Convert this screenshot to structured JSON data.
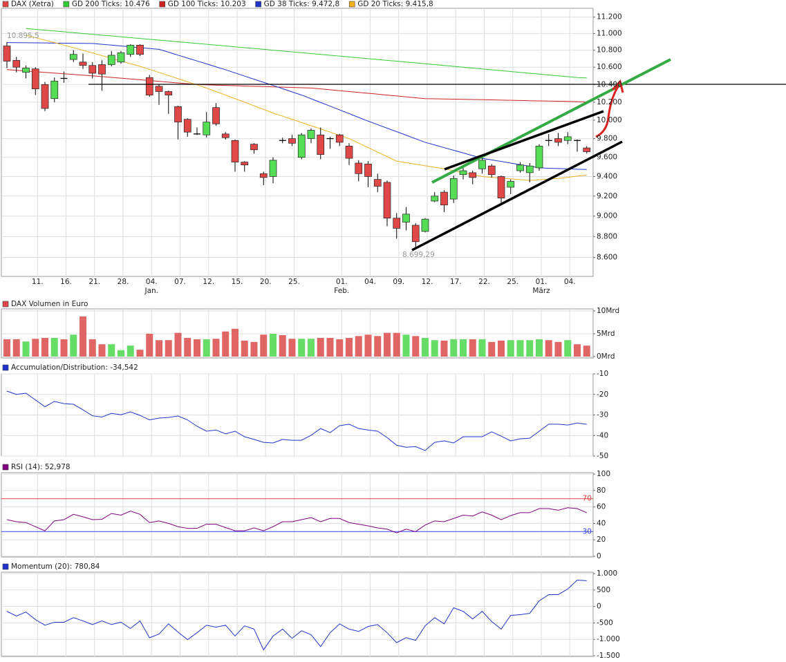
{
  "chart_data": [
    {
      "type": "candlestick",
      "name": "DAX (Xetra)",
      "log": true,
      "grid": true,
      "up_color": "#55dd55",
      "down_color": "#e04848",
      "ylim": [
        8500,
        11300
      ],
      "yticks": [
        {
          "value": 11200,
          "label": "11.200"
        },
        {
          "value": 11000,
          "label": "11.000"
        },
        {
          "value": 10800,
          "label": "10.800"
        },
        {
          "value": 10600,
          "label": "10.600"
        },
        {
          "value": 10400,
          "label": "10.400"
        },
        {
          "value": 10200,
          "label": "10.200"
        },
        {
          "value": 10000,
          "label": "10.000"
        },
        {
          "value": 9800,
          "label": "9.800"
        },
        {
          "value": 9600,
          "label": "9.600"
        },
        {
          "value": 9400,
          "label": "9.400"
        },
        {
          "value": 9200,
          "label": "9.200"
        },
        {
          "value": 9000,
          "label": "9.000"
        },
        {
          "value": 8800,
          "label": "8.800"
        },
        {
          "value": 8600,
          "label": "8.600"
        }
      ],
      "categories": [
        null,
        null,
        null,
        "11.",
        null,
        null,
        "16.",
        null,
        null,
        "21.",
        null,
        null,
        "28.",
        null,
        null,
        "04.",
        null,
        null,
        "07.",
        null,
        null,
        "12.",
        null,
        null,
        "15.",
        null,
        null,
        "20.",
        null,
        null,
        "25.",
        null,
        null,
        null,
        null,
        "01.",
        null,
        null,
        "04.",
        null,
        null,
        "09.",
        null,
        null,
        "12.",
        null,
        null,
        "17.",
        null,
        null,
        "22.",
        null,
        null,
        "25.",
        null,
        null,
        "01.",
        null,
        null,
        "04.",
        null,
        null
      ],
      "months": [
        null,
        null,
        null,
        null,
        null,
        null,
        null,
        null,
        null,
        null,
        null,
        null,
        null,
        null,
        null,
        "Jan.",
        null,
        null,
        null,
        null,
        null,
        null,
        null,
        null,
        null,
        null,
        null,
        null,
        null,
        null,
        null,
        null,
        null,
        null,
        null,
        "Feb.",
        null,
        null,
        null,
        null,
        null,
        null,
        null,
        null,
        null,
        null,
        null,
        null,
        null,
        null,
        null,
        null,
        null,
        null,
        null,
        null,
        "März",
        null,
        null,
        null,
        null,
        null
      ],
      "open": [
        10850,
        10680,
        10540,
        10580,
        10400,
        10240,
        10470,
        10690,
        10660,
        10620,
        10630,
        10630,
        10660,
        10750,
        10860,
        10480,
        10380,
        10320,
        10150,
        10010,
        9850,
        9840,
        10140,
        9850,
        9780,
        9550,
        9740,
        9430,
        9400,
        9780,
        9800,
        9600,
        9800,
        9840,
        9800,
        9840,
        9720,
        9540,
        9530,
        9370,
        9340,
        8980,
        8940,
        8910,
        8850,
        9150,
        9240,
        9170,
        9420,
        9440,
        9480,
        9510,
        9400,
        9290,
        9460,
        9440,
        9490,
        9780,
        9800,
        9780,
        9780,
        9700
      ],
      "high": [
        10895.5,
        10720,
        10620,
        10600,
        10430,
        10480,
        10550,
        10800,
        10760,
        10660,
        10680,
        10790,
        10790,
        10870,
        10870,
        10510,
        10400,
        10330,
        10160,
        10020,
        9920,
        10090,
        10190,
        9870,
        9790,
        9560,
        9750,
        9450,
        9600,
        9810,
        9840,
        9860,
        9910,
        9920,
        9820,
        9850,
        9750,
        9570,
        9560,
        9430,
        9360,
        9030,
        9090,
        8930,
        8980,
        9240,
        9260,
        9410,
        9490,
        9460,
        9610,
        9530,
        9410,
        9370,
        9550,
        9540,
        9740,
        9850,
        9860,
        9870,
        9790,
        9720
      ],
      "low": [
        10590,
        10540,
        10470,
        10280,
        10100,
        10200,
        10420,
        10660,
        10580,
        10470,
        10330,
        10610,
        10640,
        10720,
        10730,
        10260,
        10170,
        10070,
        9790,
        9820,
        9840,
        9810,
        9940,
        9790,
        9450,
        9450,
        9640,
        9310,
        9330,
        9750,
        9720,
        9580,
        9750,
        9580,
        9690,
        9720,
        9520,
        9350,
        9290,
        9240,
        8900,
        8780,
        8860,
        8699.29,
        8840,
        9140,
        9040,
        9130,
        9370,
        9320,
        9430,
        9390,
        9120,
        9220,
        9440,
        9340,
        9460,
        9720,
        9720,
        9740,
        9660,
        9640
      ],
      "close": [
        10670,
        10600,
        10590,
        10350,
        10130,
        10440,
        10470,
        10750,
        10620,
        10530,
        10520,
        10740,
        10770,
        10860,
        10750,
        10280,
        10320,
        10280,
        9980,
        9870,
        9850,
        9980,
        9960,
        9810,
        9550,
        9520,
        9680,
        9390,
        9570,
        9780,
        9750,
        9840,
        9890,
        9630,
        9800,
        9760,
        9590,
        9430,
        9400,
        9300,
        8980,
        8880,
        9020,
        8750,
        8970,
        9200,
        9110,
        9380,
        9460,
        9390,
        9570,
        9420,
        9180,
        9350,
        9520,
        9510,
        9720,
        9780,
        9760,
        9820,
        9780,
        9660
      ],
      "series": [
        {
          "name": "GD 200 Ticks: 10.476",
          "color": "#33cc33",
          "values": [
            null,
            null,
            11060,
            11050,
            11040,
            11030,
            11020,
            11010,
            11000,
            10990,
            10980,
            10970,
            10960,
            10950,
            10940,
            10930,
            10920,
            10910,
            10900,
            10890,
            10880,
            10870,
            10860,
            10850,
            10840,
            10830,
            10820,
            10810,
            10800,
            10790,
            10780,
            10770,
            10760,
            10750,
            10740,
            10730,
            10720,
            10710,
            10700,
            10690,
            10680,
            10670,
            10660,
            10650,
            10640,
            10630,
            10620,
            10610,
            10600,
            10590,
            10580,
            10570,
            10560,
            10550,
            10540,
            10530,
            10520,
            10510,
            10500,
            10490,
            10480,
            10476
          ]
        },
        {
          "name": "GD 100 Ticks: 10.203",
          "color": "#cc2222",
          "values": [
            10572,
            10564,
            10556,
            10548,
            10540,
            10532,
            10524,
            10516,
            10508,
            10500,
            10491,
            10482,
            10473,
            10464,
            10455,
            10446,
            10436,
            10427,
            10418,
            10409,
            10400,
            10397,
            10393,
            10390,
            10387,
            10383,
            10380,
            10377,
            10373,
            10370,
            10367,
            10363,
            10360,
            10350,
            10340,
            10330,
            10320,
            10310,
            10300,
            10290,
            10280,
            10270,
            10260,
            10250,
            10240,
            10238,
            10236,
            10234,
            10232,
            10230,
            10228,
            10226,
            10223,
            10221,
            10219,
            10217,
            10215,
            10213,
            10211,
            10209,
            10206,
            10203
          ]
        },
        {
          "name": "GD 38 Ticks: 9.472,8",
          "color": "#2233cc",
          "values": [
            10890,
            10889,
            10888,
            10887,
            10886,
            10884,
            10883,
            10882,
            10881,
            10880,
            10870,
            10860,
            10850,
            10840,
            10830,
            10820,
            10810,
            10776,
            10741,
            10707,
            10673,
            10639,
            10604,
            10570,
            10534,
            10497,
            10461,
            10425,
            10389,
            10353,
            10316,
            10280,
            10239,
            10197,
            10156,
            10114,
            10073,
            10031,
            9990,
            9952,
            9913,
            9875,
            9837,
            9798,
            9760,
            9732,
            9703,
            9675,
            9647,
            9618,
            9590,
            9573,
            9557,
            9540,
            9523,
            9507,
            9490,
            9486,
            9483,
            9479,
            9476,
            9472.8
          ]
        },
        {
          "name": "GD 20 Ticks: 9.415,8",
          "color": "#f0b020",
          "values": [
            null,
            null,
            10980,
            10950,
            10920,
            10890,
            10860,
            10830,
            10799,
            10767,
            10736,
            10704,
            10673,
            10641,
            10610,
            10574,
            10539,
            10503,
            10467,
            10431,
            10396,
            10360,
            10320,
            10280,
            10240,
            10200,
            10160,
            10120,
            10080,
            10045,
            10010,
            9975,
            9940,
            9905,
            9870,
            9835,
            9800,
            9752,
            9704,
            9656,
            9608,
            9560,
            9544,
            9528,
            9512,
            9496,
            9480,
            9460,
            9440,
            9420,
            9400,
            9392,
            9384,
            9376,
            9368,
            9360,
            9367,
            9373,
            9380,
            9392,
            9404,
            9415.8
          ]
        }
      ],
      "annotations": [
        "10.895,5",
        "8.699,29"
      ]
    },
    {
      "type": "bar",
      "title": "DAX Volumen in Euro",
      "color": "#e04848",
      "up_color": "#66dd66",
      "down_color": "#e06666",
      "grid": true,
      "ylim": [
        0,
        10
      ],
      "yticks": [
        {
          "value": 10,
          "label": "10Mrd"
        },
        {
          "value": 5,
          "label": "5Mrd"
        },
        {
          "value": 0,
          "label": "0Mrd"
        }
      ],
      "values": [
        3.8,
        3.8,
        3.3,
        3.9,
        4.1,
        4.1,
        3.8,
        4.8,
        8.8,
        3.8,
        2.7,
        2.7,
        1.4,
        2.4,
        1.5,
        5.0,
        3.6,
        3.6,
        5.2,
        4.1,
        3.8,
        3.8,
        3.9,
        5.5,
        6.1,
        3.5,
        3.2,
        4.8,
        5.0,
        4.7,
        3.9,
        3.9,
        3.9,
        4.1,
        4.1,
        3.8,
        4.1,
        4.5,
        4.8,
        4.5,
        5.2,
        5.2,
        4.8,
        4.5,
        4.1,
        3.6,
        3.5,
        3.8,
        3.8,
        3.8,
        3.8,
        3.2,
        3.5,
        3.6,
        3.6,
        3.6,
        3.8,
        3.6,
        3.2,
        3.6,
        2.7,
        2.4
      ]
    },
    {
      "type": "line",
      "title": "Accumulation/Distribution: -34,542",
      "color": "#2233cc",
      "grid": true,
      "ylim": [
        -50,
        -10
      ],
      "yticks": [
        -10,
        -20,
        -30,
        -40,
        -50
      ],
      "values": [
        -18.4,
        -20,
        -19.4,
        -22.7,
        -26,
        -23.4,
        -24.5,
        -24.8,
        -27.5,
        -30.4,
        -31,
        -29.2,
        -29.9,
        -28.5,
        -30.2,
        -32.4,
        -31.5,
        -31.2,
        -30.5,
        -32.4,
        -35.5,
        -37.9,
        -37.3,
        -39.2,
        -37.9,
        -40.6,
        -41.9,
        -43.3,
        -43.6,
        -41.9,
        -42.3,
        -42.3,
        -39.9,
        -36.6,
        -38.6,
        -35.2,
        -34.5,
        -36.6,
        -37.3,
        -37.9,
        -41,
        -44.7,
        -45.7,
        -45.4,
        -47.3,
        -43.3,
        -42.6,
        -43.6,
        -40.6,
        -40.6,
        -40.6,
        -38.2,
        -40.3,
        -42.6,
        -41.6,
        -41.3,
        -37.9,
        -34.5,
        -34.5,
        -34.9,
        -33.9,
        -34.542
      ]
    },
    {
      "type": "line",
      "title": "RSI (14): 52,978",
      "color": "#800080",
      "grid": true,
      "ylim": [
        0,
        100
      ],
      "yticks": [
        100,
        80,
        60,
        40,
        20,
        0
      ],
      "reference_lines": [
        {
          "value": 70,
          "color": "#e04040"
        },
        {
          "value": 30,
          "color": "#3344ee"
        }
      ],
      "values": [
        44.5,
        42,
        41,
        36,
        31,
        43,
        44.5,
        51,
        48,
        44.5,
        45,
        52,
        50,
        55,
        51,
        41,
        43,
        40,
        36,
        34,
        34,
        39,
        39,
        35,
        31,
        31,
        34.5,
        31,
        36,
        42,
        42,
        44.5,
        47,
        42,
        46,
        46,
        41,
        39,
        37,
        34.5,
        33,
        28.5,
        33,
        30,
        38,
        43,
        42,
        46,
        50,
        49,
        54,
        50,
        44.5,
        49.5,
        53,
        53,
        58,
        58,
        56,
        59,
        58,
        52.978
      ]
    },
    {
      "type": "line",
      "title": "Momentum (20): 780,84",
      "color": "#2233cc",
      "grid": true,
      "ylim": [
        -1500,
        1000
      ],
      "yticks": [
        {
          "value": 1000,
          "label": "1.000"
        },
        500,
        0,
        -500,
        {
          "value": -1000,
          "label": "-1.000"
        },
        {
          "value": -1500,
          "label": "-1.500"
        }
      ],
      "values": [
        -150,
        -290,
        -170,
        -400,
        -570,
        -480,
        -480,
        -340,
        -440,
        -550,
        -440,
        -550,
        -480,
        -670,
        -440,
        -950,
        -840,
        -530,
        -780,
        -1010,
        -800,
        -570,
        -630,
        -570,
        -900,
        -590,
        -690,
        -1320,
        -900,
        -690,
        -970,
        -740,
        -860,
        -1220,
        -800,
        -530,
        -690,
        -760,
        -610,
        -550,
        -800,
        -1100,
        -950,
        -1030,
        -590,
        -340,
        -530,
        -40,
        -150,
        -380,
        -150,
        -460,
        -690,
        -270,
        -250,
        -210,
        170,
        360,
        360,
        530,
        800,
        780.84
      ]
    }
  ]
}
